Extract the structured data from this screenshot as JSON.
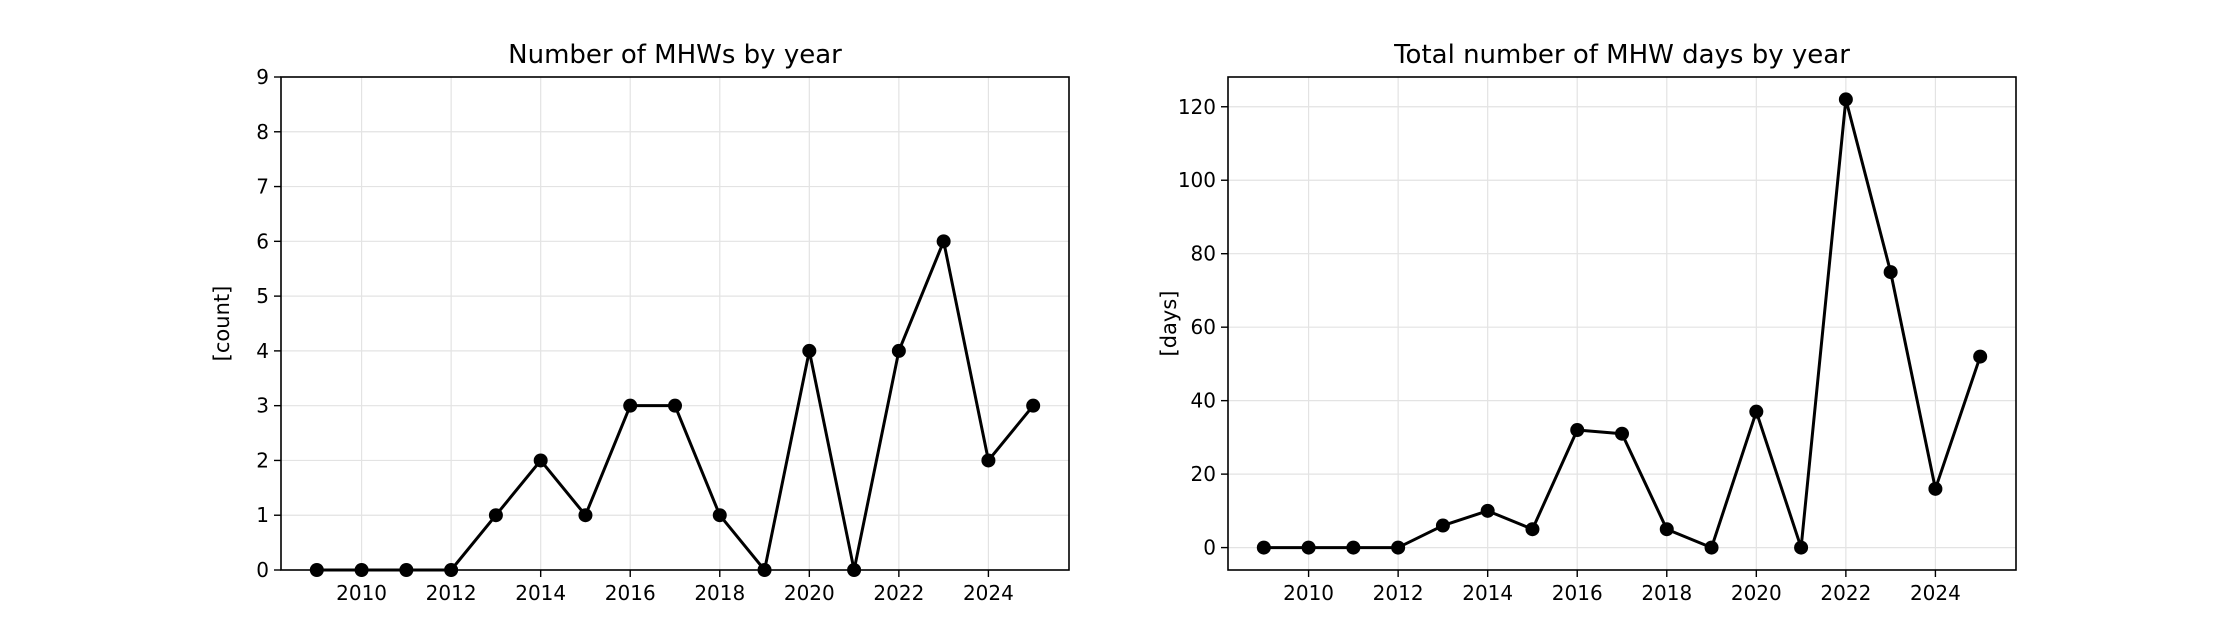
{
  "chart_data": [
    {
      "type": "line",
      "title": "Number of MHWs by year",
      "xlabel": "",
      "ylabel": "[count]",
      "x": [
        2009,
        2010,
        2011,
        2012,
        2013,
        2014,
        2015,
        2016,
        2017,
        2018,
        2019,
        2020,
        2021,
        2022,
        2023,
        2024,
        2025
      ],
      "series": [
        {
          "values": [
            0,
            0,
            0,
            0,
            1,
            2,
            1,
            3,
            3,
            1,
            0,
            4,
            0,
            4,
            6,
            2,
            3
          ]
        }
      ],
      "xlim": [
        2008.2,
        2025.8
      ],
      "ylim": [
        0,
        9
      ],
      "xticks": [
        2010,
        2012,
        2014,
        2016,
        2018,
        2020,
        2022,
        2024
      ],
      "yticks": [
        0,
        1,
        2,
        3,
        4,
        5,
        6,
        7,
        8,
        9
      ],
      "grid": true,
      "line_color": "#000000"
    },
    {
      "type": "line",
      "title": "Total number of MHW days by year",
      "xlabel": "",
      "ylabel": "[days]",
      "x": [
        2009,
        2010,
        2011,
        2012,
        2013,
        2014,
        2015,
        2016,
        2017,
        2018,
        2019,
        2020,
        2021,
        2022,
        2023,
        2024,
        2025
      ],
      "series": [
        {
          "values": [
            0,
            0,
            0,
            0,
            6,
            10,
            5,
            32,
            31,
            5,
            0,
            37,
            0,
            122,
            75,
            16,
            52
          ]
        }
      ],
      "xlim": [
        2008.2,
        2025.8
      ],
      "ylim": [
        -6.1,
        128.1
      ],
      "xticks": [
        2010,
        2012,
        2014,
        2016,
        2018,
        2020,
        2022,
        2024
      ],
      "yticks": [
        0,
        20,
        40,
        60,
        80,
        100,
        120
      ],
      "grid": true,
      "line_color": "#000000"
    }
  ]
}
